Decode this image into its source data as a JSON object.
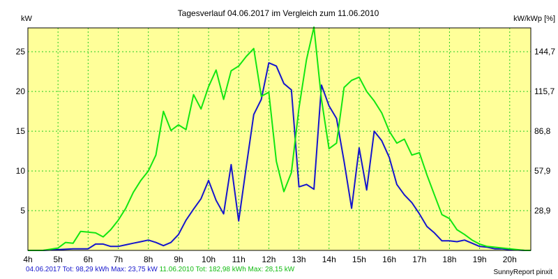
{
  "chart_data": {
    "type": "line",
    "title": "Tagesverlauf 04.06.2017 im Vergleich zum 11.06.2010",
    "ylabel_left": "kW",
    "ylabel_right": "kW/kWp [%]",
    "x_ticks": [
      "4h",
      "5h",
      "6h",
      "7h",
      "8h",
      "9h",
      "10h",
      "11h",
      "12h",
      "13h",
      "14h",
      "15h",
      "16h",
      "17h",
      "18h",
      "19h",
      "20h"
    ],
    "xlim": [
      4,
      20.7
    ],
    "y_ticks_left": [
      5,
      10,
      15,
      20,
      25
    ],
    "y_ticks_right": [
      "28,9",
      "57,9",
      "86,8",
      "115,7",
      "144,7"
    ],
    "ylim": [
      0,
      28
    ],
    "grid": true,
    "colors": {
      "series1": "#1515cc",
      "series2": "#11e611",
      "grid": "#22cc22",
      "background": "#ffff99"
    },
    "series": [
      {
        "name": "04.06.2017",
        "x": [
          4.0,
          4.5,
          5.0,
          5.5,
          6.0,
          6.25,
          6.5,
          6.75,
          7.0,
          7.25,
          7.5,
          7.75,
          8.0,
          8.25,
          8.5,
          8.75,
          9.0,
          9.25,
          9.5,
          9.75,
          10.0,
          10.25,
          10.5,
          10.75,
          11.0,
          11.25,
          11.5,
          11.75,
          12.0,
          12.25,
          12.5,
          12.75,
          13.0,
          13.25,
          13.5,
          13.75,
          14.0,
          14.25,
          14.5,
          14.75,
          15.0,
          15.25,
          15.5,
          15.75,
          16.0,
          16.25,
          16.5,
          16.75,
          17.0,
          17.25,
          17.5,
          17.75,
          18.0,
          18.25,
          18.5,
          18.75,
          19.0,
          19.25,
          19.5,
          19.75,
          20.0,
          20.5,
          20.7
        ],
        "values": [
          0,
          0,
          0.1,
          0.2,
          0.2,
          0.8,
          0.8,
          0.5,
          0.5,
          0.7,
          0.9,
          1.1,
          1.3,
          1.0,
          0.6,
          1.0,
          2.0,
          3.8,
          5.2,
          6.5,
          8.8,
          6.3,
          4.6,
          10.8,
          3.7,
          10.5,
          17.1,
          19.0,
          23.6,
          23.2,
          21.0,
          20.2,
          8.0,
          8.3,
          7.7,
          20.8,
          18.2,
          16.6,
          11.2,
          5.3,
          12.9,
          7.6,
          15.0,
          13.8,
          11.7,
          8.3,
          7.0,
          6.0,
          4.6,
          3.0,
          2.2,
          1.2,
          1.2,
          1.1,
          1.3,
          0.9,
          0.5,
          0.4,
          0.2,
          0.2,
          0.1,
          0,
          0
        ]
      },
      {
        "name": "11.06.2010",
        "x": [
          4.0,
          4.5,
          5.0,
          5.25,
          5.5,
          5.75,
          6.0,
          6.25,
          6.5,
          6.75,
          7.0,
          7.25,
          7.5,
          7.75,
          8.0,
          8.25,
          8.5,
          8.75,
          9.0,
          9.25,
          9.5,
          9.75,
          10.0,
          10.25,
          10.5,
          10.75,
          11.0,
          11.25,
          11.5,
          11.75,
          12.0,
          12.25,
          12.5,
          12.75,
          13.0,
          13.25,
          13.5,
          13.75,
          14.0,
          14.25,
          14.5,
          14.75,
          15.0,
          15.25,
          15.5,
          15.75,
          16.0,
          16.25,
          16.5,
          16.75,
          17.0,
          17.25,
          17.5,
          17.75,
          18.0,
          18.25,
          18.5,
          18.75,
          19.0,
          19.25,
          19.5,
          20.0,
          20.5,
          20.7
        ],
        "values": [
          0,
          0,
          0.3,
          1.0,
          0.9,
          2.4,
          2.3,
          2.2,
          1.7,
          2.6,
          3.8,
          5.3,
          7.3,
          8.8,
          10.0,
          12.0,
          17.5,
          15.1,
          15.8,
          15.2,
          19.6,
          17.8,
          20.6,
          22.7,
          19.0,
          22.6,
          23.2,
          24.4,
          25.4,
          19.4,
          19.9,
          11.2,
          7.4,
          9.8,
          17.9,
          24.0,
          28.1,
          19.0,
          12.8,
          13.5,
          20.5,
          21.4,
          21.8,
          20.0,
          18.8,
          17.3,
          15.0,
          13.5,
          14.0,
          12.0,
          12.3,
          9.5,
          7.0,
          4.5,
          4.0,
          2.6,
          2.0,
          1.3,
          0.8,
          0.5,
          0.4,
          0.2,
          0,
          0
        ]
      }
    ]
  },
  "legend": {
    "series1": "04.06.2017 Tot: 98,29 kWh Max: 23,75 kW",
    "series2": "11.06.2010 Tot: 182,98 kWh Max: 28,15 kW"
  },
  "credit": "SunnyReport pinxit"
}
